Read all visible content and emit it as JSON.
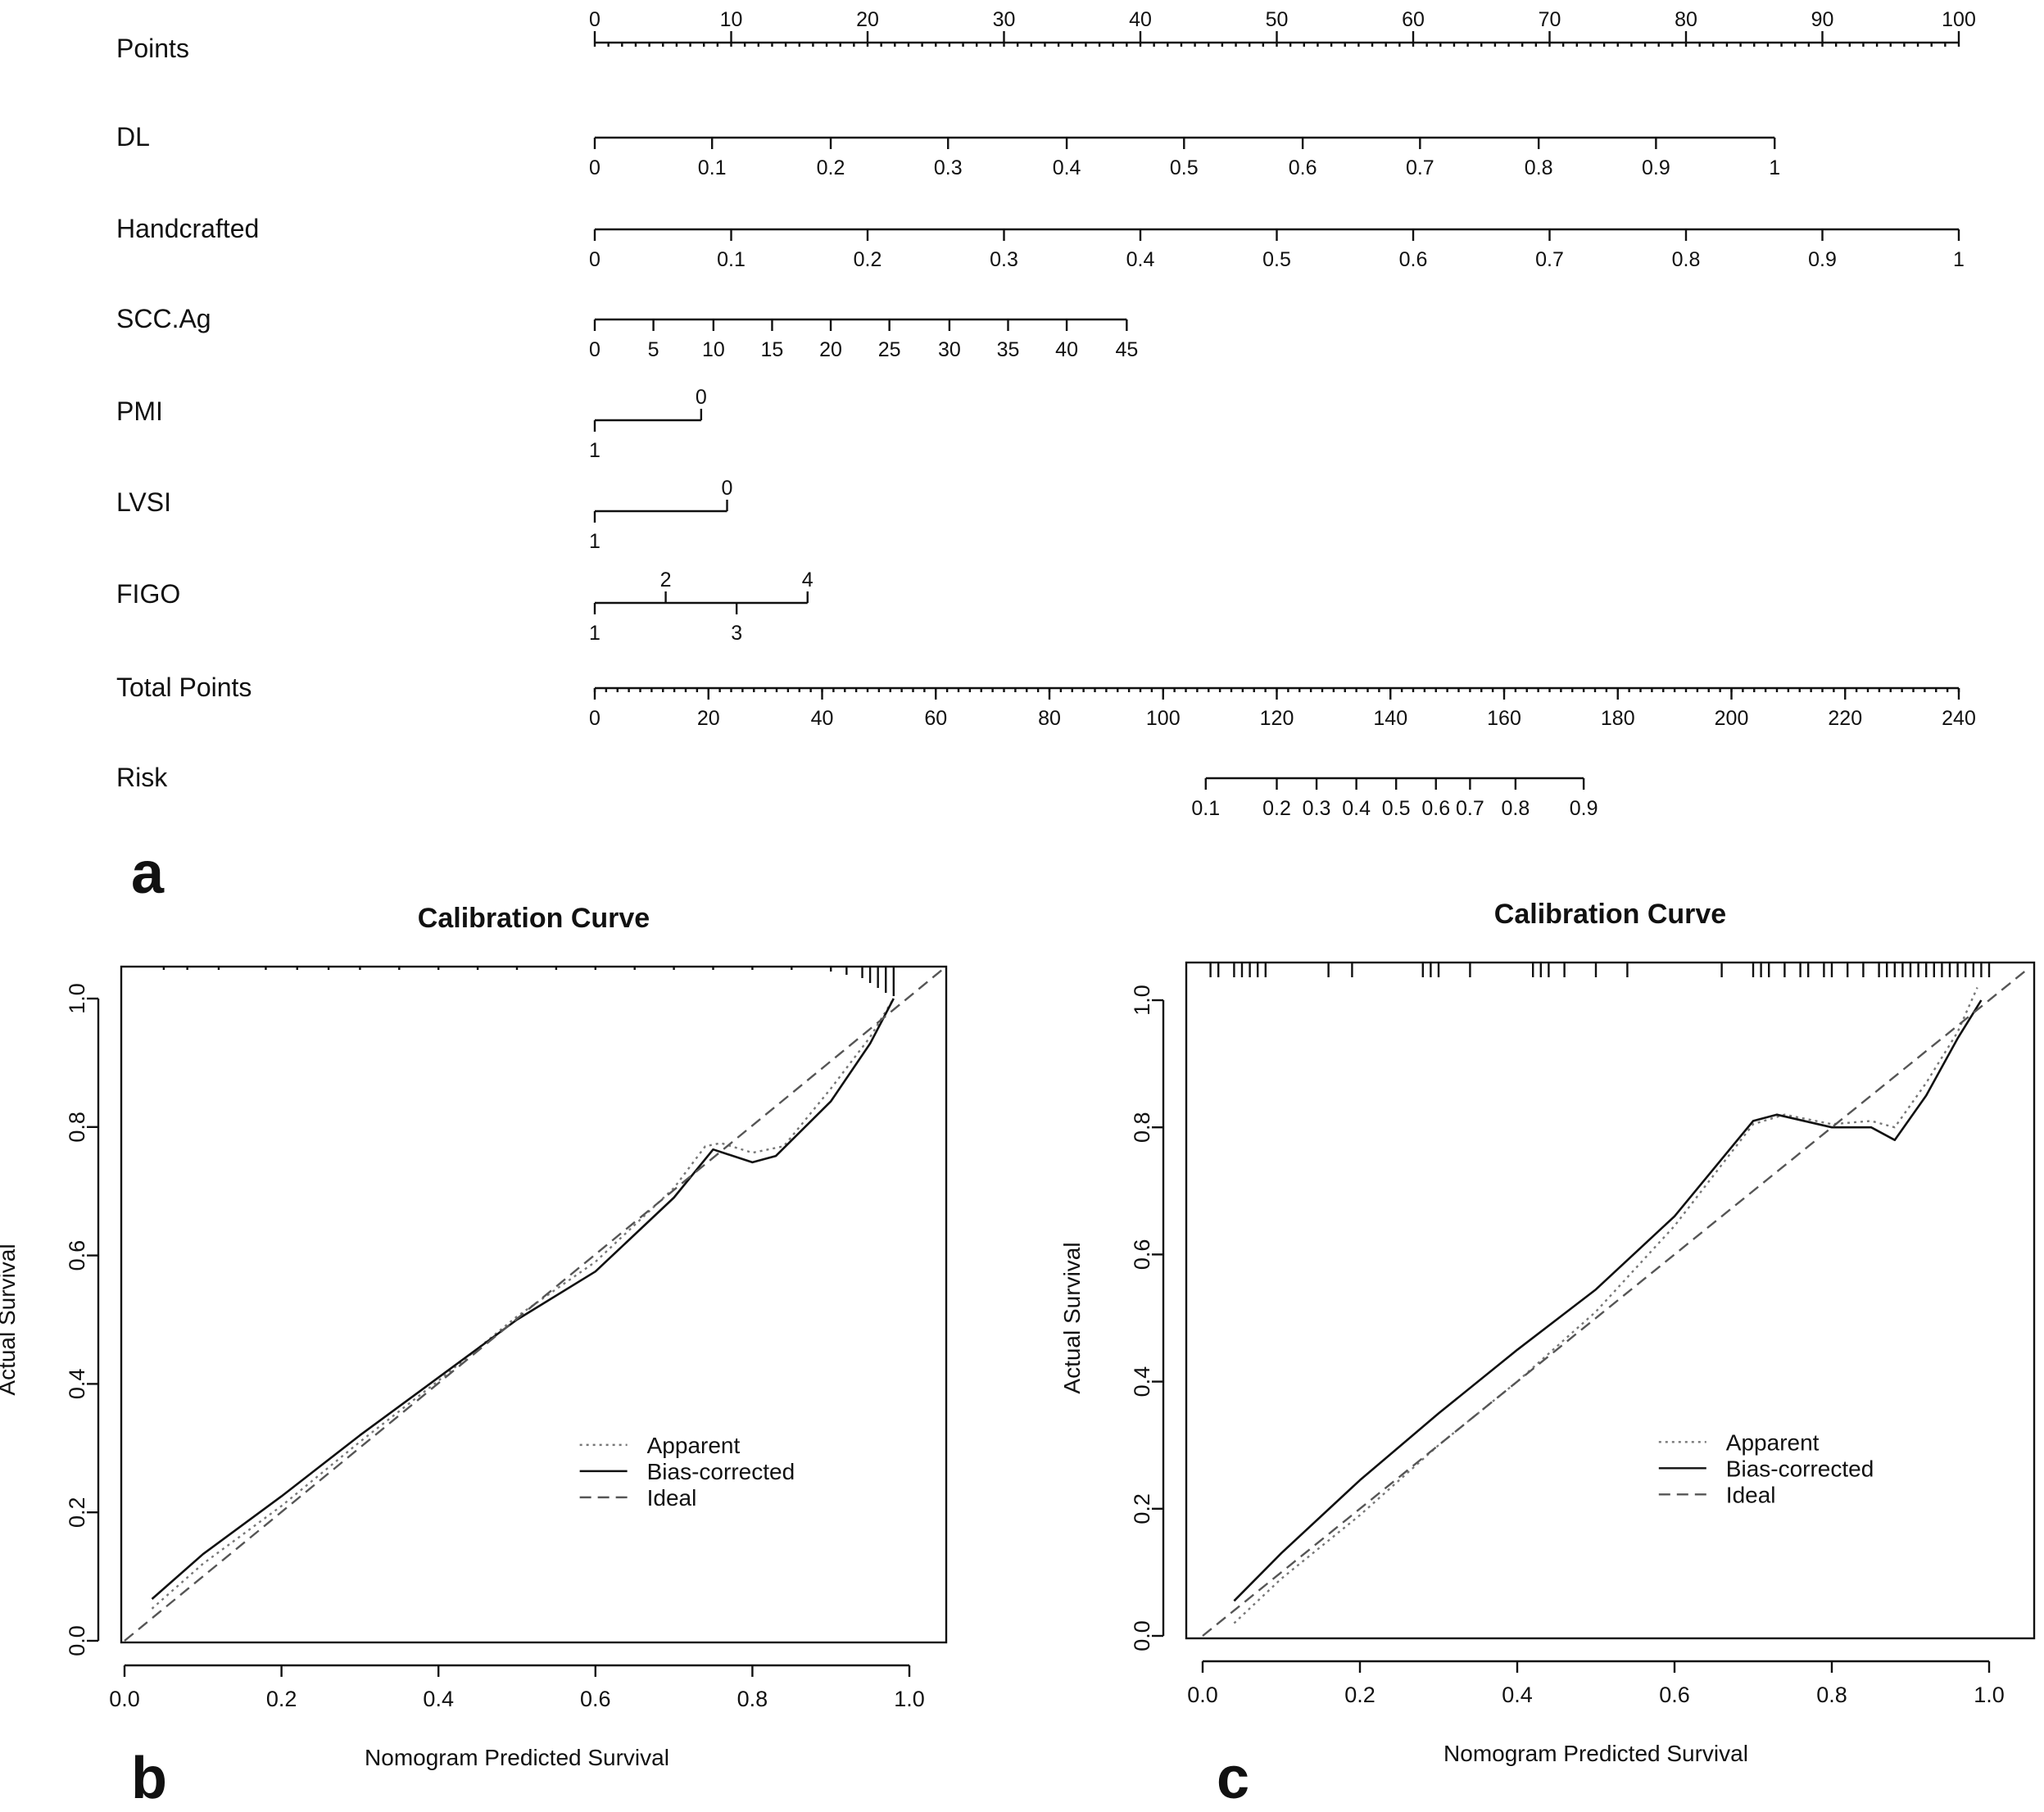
{
  "panel_letters": {
    "a": "a",
    "b": "b",
    "c": "c"
  },
  "chart_data": [
    {
      "type": "nomogram",
      "panel": "a",
      "scales": [
        {
          "label": "Points",
          "ticks": [
            0,
            10,
            20,
            30,
            40,
            50,
            60,
            70,
            80,
            90,
            100
          ],
          "tick_labels": [
            "0",
            "10",
            "20",
            "30",
            "40",
            "50",
            "60",
            "70",
            "80",
            "90",
            "100"
          ],
          "points": [
            0,
            10,
            20,
            30,
            40,
            50,
            60,
            70,
            80,
            90,
            100
          ],
          "minor_step": 1,
          "labels_above": true
        },
        {
          "label": "DL",
          "tick_labels": [
            "0",
            "0.1",
            "0.2",
            "0.3",
            "0.4",
            "0.5",
            "0.6",
            "0.7",
            "0.8",
            "0.9",
            "1"
          ],
          "points": [
            0,
            8.6,
            17.3,
            25.9,
            34.6,
            43.2,
            51.9,
            60.5,
            69.2,
            77.8,
            86.5
          ]
        },
        {
          "label": "Handcrafted",
          "tick_labels": [
            "0",
            "0.1",
            "0.2",
            "0.3",
            "0.4",
            "0.5",
            "0.6",
            "0.7",
            "0.8",
            "0.9",
            "1"
          ],
          "points": [
            0,
            10,
            20,
            30,
            40,
            50,
            60,
            70,
            80,
            90,
            100
          ]
        },
        {
          "label": "SCC.Ag",
          "tick_labels": [
            "0",
            "5",
            "10",
            "15",
            "20",
            "25",
            "30",
            "35",
            "40",
            "45"
          ],
          "points": [
            0,
            4.3,
            8.7,
            13,
            17.3,
            21.6,
            26,
            30.3,
            34.6,
            39
          ]
        },
        {
          "label": "PMI",
          "tick_labels": [
            "1",
            "0"
          ],
          "points": [
            0,
            7.8
          ],
          "label_side": [
            "below",
            "above"
          ]
        },
        {
          "label": "LVSI",
          "tick_labels": [
            "1",
            "0"
          ],
          "points": [
            0,
            9.7
          ],
          "label_side": [
            "below",
            "above"
          ]
        },
        {
          "label": "FIGO",
          "tick_labels": [
            "1",
            "2",
            "3",
            "4"
          ],
          "points": [
            0,
            5.2,
            10.4,
            15.6
          ],
          "label_side": [
            "below",
            "above",
            "below",
            "above"
          ]
        },
        {
          "label": "Total Points",
          "tick_labels": [
            "0",
            "20",
            "40",
            "60",
            "80",
            "100",
            "120",
            "140",
            "160",
            "180",
            "200",
            "220",
            "240"
          ],
          "points": [
            0,
            20,
            40,
            60,
            80,
            100,
            120,
            140,
            160,
            180,
            200,
            220,
            240
          ],
          "minor_step": 2,
          "total_scale": true
        },
        {
          "label": "Risk",
          "tick_labels": [
            "0.1",
            "0.2",
            "0.3",
            "0.4",
            "0.5",
            "0.6",
            "0.7",
            "0.8",
            "0.9"
          ],
          "points": [
            107.5,
            120,
            127,
            134,
            141,
            148,
            154,
            162,
            174
          ],
          "total_scale": true
        }
      ]
    },
    {
      "type": "line",
      "panel": "b",
      "title": "Calibration Curve",
      "xlabel": "Nomogram Predicted Survival",
      "ylabel": "Actual Survival",
      "xlim": [
        0,
        1.0
      ],
      "ylim": [
        0,
        1.05
      ],
      "xticks": [
        "0.0",
        "0.2",
        "0.4",
        "0.6",
        "0.8",
        "1.0"
      ],
      "yticks": [
        "0.0",
        "0.2",
        "0.4",
        "0.6",
        "0.8",
        "1.0"
      ],
      "legend_position": "bottom-right",
      "series": [
        {
          "name": "Apparent",
          "style": "dotted",
          "x": [
            0.035,
            0.1,
            0.2,
            0.3,
            0.4,
            0.5,
            0.6,
            0.7,
            0.74,
            0.76,
            0.8,
            0.84,
            0.9,
            0.95,
            0.98
          ],
          "y": [
            0.05,
            0.12,
            0.21,
            0.31,
            0.405,
            0.505,
            0.59,
            0.705,
            0.77,
            0.775,
            0.76,
            0.77,
            0.86,
            0.94,
            1.0
          ]
        },
        {
          "name": "Bias-corrected",
          "style": "solid",
          "x": [
            0.035,
            0.1,
            0.2,
            0.3,
            0.4,
            0.5,
            0.6,
            0.7,
            0.75,
            0.8,
            0.83,
            0.9,
            0.95,
            0.98
          ],
          "y": [
            0.065,
            0.135,
            0.225,
            0.32,
            0.41,
            0.5,
            0.575,
            0.69,
            0.765,
            0.745,
            0.755,
            0.84,
            0.93,
            1.0
          ]
        },
        {
          "name": "Ideal",
          "style": "dashed",
          "x": [
            0,
            1.05
          ],
          "y": [
            0,
            1.05
          ]
        }
      ],
      "rug": [
        0.05,
        0.08,
        0.12,
        0.18,
        0.22,
        0.26,
        0.3,
        0.35,
        0.4,
        0.45,
        0.5,
        0.55,
        0.6,
        0.65,
        0.7,
        0.75,
        0.8,
        0.85,
        0.9,
        0.92,
        0.94,
        0.95,
        0.96,
        0.97,
        0.98
      ],
      "rug_lengths": [
        4,
        4,
        4,
        4,
        4,
        4,
        4,
        4,
        4,
        4,
        4,
        4,
        4,
        4,
        4,
        4,
        4,
        4,
        6,
        10,
        14,
        20,
        26,
        32,
        36
      ]
    },
    {
      "type": "line",
      "panel": "c",
      "title": "Calibration Curve",
      "xlabel": "Nomogram Predicted Survival",
      "ylabel": "Actual Survival",
      "xlim": [
        0,
        1.0
      ],
      "ylim": [
        0,
        1.05
      ],
      "xticks": [
        "0.0",
        "0.2",
        "0.4",
        "0.6",
        "0.8",
        "1.0"
      ],
      "yticks": [
        "0.0",
        "0.2",
        "0.4",
        "0.6",
        "0.8",
        "1.0"
      ],
      "legend_position": "bottom-right",
      "series": [
        {
          "name": "Apparent",
          "style": "dotted",
          "x": [
            0.04,
            0.1,
            0.2,
            0.3,
            0.4,
            0.5,
            0.6,
            0.7,
            0.74,
            0.8,
            0.85,
            0.88,
            0.92,
            0.96,
            0.985
          ],
          "y": [
            0.02,
            0.09,
            0.19,
            0.3,
            0.4,
            0.51,
            0.645,
            0.805,
            0.82,
            0.805,
            0.81,
            0.8,
            0.87,
            0.95,
            1.02
          ]
        },
        {
          "name": "Bias-corrected",
          "style": "solid",
          "x": [
            0.04,
            0.1,
            0.2,
            0.3,
            0.4,
            0.5,
            0.6,
            0.7,
            0.73,
            0.8,
            0.85,
            0.88,
            0.92,
            0.96,
            0.99
          ],
          "y": [
            0.055,
            0.13,
            0.245,
            0.35,
            0.45,
            0.545,
            0.66,
            0.81,
            0.82,
            0.8,
            0.8,
            0.78,
            0.85,
            0.94,
            1.0
          ]
        },
        {
          "name": "Ideal",
          "style": "dashed",
          "x": [
            0,
            1.05
          ],
          "y": [
            0,
            1.05
          ]
        }
      ],
      "rug": [
        0.01,
        0.02,
        0.04,
        0.05,
        0.06,
        0.07,
        0.08,
        0.16,
        0.19,
        0.28,
        0.29,
        0.3,
        0.34,
        0.42,
        0.43,
        0.44,
        0.46,
        0.5,
        0.54,
        0.66,
        0.7,
        0.71,
        0.72,
        0.74,
        0.76,
        0.77,
        0.79,
        0.8,
        0.82,
        0.84,
        0.86,
        0.87,
        0.88,
        0.89,
        0.9,
        0.91,
        0.92,
        0.93,
        0.94,
        0.95,
        0.96,
        0.97,
        0.98,
        0.99,
        1.0
      ]
    }
  ]
}
